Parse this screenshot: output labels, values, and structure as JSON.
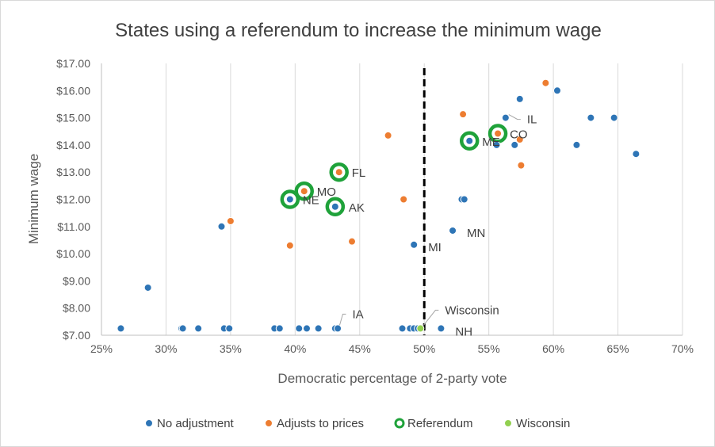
{
  "chart_data": {
    "type": "scatter",
    "title": "States using a referendum to increase the minimum wage",
    "xlabel": "Democratic percentage of 2-party vote",
    "ylabel": "Minimum wage",
    "xlim": [
      0.25,
      0.7
    ],
    "ylim": [
      7.0,
      17.0
    ],
    "x_ticks": [
      {
        "value": 0.25,
        "label": "25%"
      },
      {
        "value": 0.3,
        "label": "30%"
      },
      {
        "value": 0.35,
        "label": "35%"
      },
      {
        "value": 0.4,
        "label": "40%"
      },
      {
        "value": 0.45,
        "label": "45%"
      },
      {
        "value": 0.5,
        "label": "50%"
      },
      {
        "value": 0.55,
        "label": "55%"
      },
      {
        "value": 0.6,
        "label": "60%"
      },
      {
        "value": 0.65,
        "label": "65%"
      },
      {
        "value": 0.7,
        "label": "70%"
      }
    ],
    "y_ticks": [
      {
        "value": 7,
        "label": "$7.00"
      },
      {
        "value": 8,
        "label": "$8.00"
      },
      {
        "value": 9,
        "label": "$9.00"
      },
      {
        "value": 10,
        "label": "$10.00"
      },
      {
        "value": 11,
        "label": "$11.00"
      },
      {
        "value": 12,
        "label": "$12.00"
      },
      {
        "value": 13,
        "label": "$13.00"
      },
      {
        "value": 14,
        "label": "$14.00"
      },
      {
        "value": 15,
        "label": "$15.00"
      },
      {
        "value": 16,
        "label": "$16.00"
      },
      {
        "value": 17,
        "label": "$17.00"
      }
    ],
    "grid": "vertical",
    "legend_position": "bottom",
    "reference_line": {
      "x": 0.5,
      "style": "dashed",
      "color": "#000000"
    },
    "series": [
      {
        "name": "No adjustment",
        "color": "#2E75B6",
        "points": [
          {
            "x": 0.265,
            "y": 7.25
          },
          {
            "x": 0.286,
            "y": 8.75
          },
          {
            "x": 0.312,
            "y": 7.25
          },
          {
            "x": 0.313,
            "y": 7.25
          },
          {
            "x": 0.325,
            "y": 7.25
          },
          {
            "x": 0.343,
            "y": 11.0
          },
          {
            "x": 0.345,
            "y": 7.25
          },
          {
            "x": 0.349,
            "y": 7.25
          },
          {
            "x": 0.384,
            "y": 7.25
          },
          {
            "x": 0.388,
            "y": 7.25
          },
          {
            "x": 0.403,
            "y": 7.25
          },
          {
            "x": 0.409,
            "y": 7.25
          },
          {
            "x": 0.418,
            "y": 7.25
          },
          {
            "x": 0.431,
            "y": 7.25
          },
          {
            "x": 0.433,
            "y": 7.25
          },
          {
            "x": 0.483,
            "y": 7.25
          },
          {
            "x": 0.489,
            "y": 7.25
          },
          {
            "x": 0.492,
            "y": 7.25
          },
          {
            "x": 0.495,
            "y": 7.25
          },
          {
            "x": 0.513,
            "y": 7.25
          },
          {
            "x": 0.492,
            "y": 10.33
          },
          {
            "x": 0.522,
            "y": 10.85
          },
          {
            "x": 0.529,
            "y": 12.0
          },
          {
            "x": 0.531,
            "y": 12.0
          },
          {
            "x": 0.535,
            "y": 14.15
          },
          {
            "x": 0.556,
            "y": 14.0
          },
          {
            "x": 0.563,
            "y": 15.0
          },
          {
            "x": 0.57,
            "y": 14.0
          },
          {
            "x": 0.574,
            "y": 15.69
          },
          {
            "x": 0.603,
            "y": 16.0
          },
          {
            "x": 0.618,
            "y": 14.0
          },
          {
            "x": 0.629,
            "y": 15.0
          },
          {
            "x": 0.647,
            "y": 15.0
          },
          {
            "x": 0.664,
            "y": 13.67
          },
          {
            "x": 0.396,
            "y": 12.0
          },
          {
            "x": 0.431,
            "y": 11.73
          }
        ]
      },
      {
        "name": "Adjusts to prices",
        "color": "#ED7D31",
        "points": [
          {
            "x": 0.35,
            "y": 11.2
          },
          {
            "x": 0.396,
            "y": 10.3
          },
          {
            "x": 0.407,
            "y": 12.3
          },
          {
            "x": 0.434,
            "y": 13.0
          },
          {
            "x": 0.444,
            "y": 10.45
          },
          {
            "x": 0.472,
            "y": 14.35
          },
          {
            "x": 0.484,
            "y": 12.0
          },
          {
            "x": 0.53,
            "y": 15.13
          },
          {
            "x": 0.557,
            "y": 14.42
          },
          {
            "x": 0.574,
            "y": 14.2
          },
          {
            "x": 0.575,
            "y": 13.25
          },
          {
            "x": 0.594,
            "y": 16.28
          }
        ]
      },
      {
        "name": "Referendum",
        "color": "#1FA23A",
        "points": [
          {
            "x": 0.396,
            "y": 12.0
          },
          {
            "x": 0.407,
            "y": 12.3
          },
          {
            "x": 0.431,
            "y": 11.73
          },
          {
            "x": 0.434,
            "y": 13.0
          },
          {
            "x": 0.535,
            "y": 14.15
          },
          {
            "x": 0.557,
            "y": 14.42
          }
        ]
      },
      {
        "name": "Wisconsin",
        "color": "#92D050",
        "points": [
          {
            "x": 0.497,
            "y": 7.25
          }
        ]
      }
    ],
    "point_labels": [
      {
        "text": "FL",
        "x": 0.434,
        "y": 13.0,
        "dx": 16,
        "dy": 6
      },
      {
        "text": "MO",
        "x": 0.407,
        "y": 12.3,
        "dx": 16,
        "dy": 6
      },
      {
        "text": "NE",
        "x": 0.396,
        "y": 12.0,
        "dx": 16,
        "dy": 6
      },
      {
        "text": "AK",
        "x": 0.431,
        "y": 11.73,
        "dx": 17,
        "dy": 6
      },
      {
        "text": "MN",
        "x": 0.522,
        "y": 10.85,
        "dx": 18,
        "dy": 8
      },
      {
        "text": "MI",
        "x": 0.492,
        "y": 10.33,
        "dx": 18,
        "dy": 8
      },
      {
        "text": "ME",
        "x": 0.535,
        "y": 14.15,
        "dx": 16,
        "dy": 6
      },
      {
        "text": "CO",
        "x": 0.557,
        "y": 14.42,
        "dx": 15,
        "dy": 6
      },
      {
        "text": "NH",
        "x": 0.513,
        "y": 7.25,
        "dx": 18,
        "dy": 9
      },
      {
        "text": "IL",
        "x": 0.563,
        "y": 15.0,
        "dx": 27,
        "dy": 7,
        "leader": true
      },
      {
        "text": "IA",
        "x": 0.432,
        "y": 7.25,
        "dx": 20,
        "dy": -13,
        "leader": true
      },
      {
        "text": "Wisconsin",
        "x": 0.497,
        "y": 7.25,
        "dx": 31,
        "dy": -18,
        "leader": true
      }
    ]
  }
}
